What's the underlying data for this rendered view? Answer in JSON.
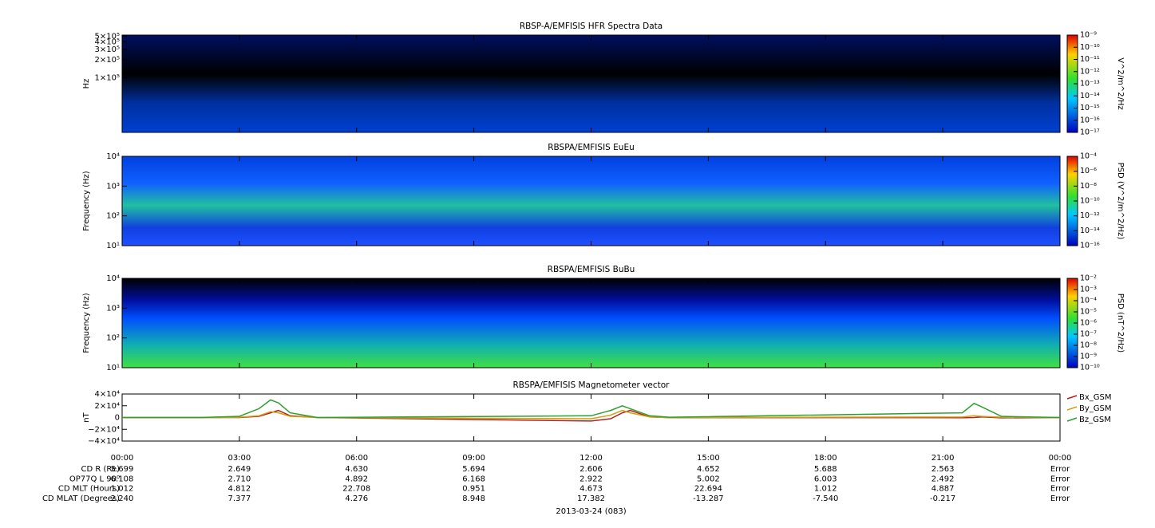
{
  "chart_data": [
    {
      "type": "spectrogram",
      "title": "RBSP-A/EMFISIS  HFR Spectra Data",
      "ylabel": "Hz",
      "ylog": true,
      "ylim": [
        12000,
        520000
      ],
      "yticks": [
        {
          "value": 100000,
          "label": "1×10⁵"
        },
        {
          "value": 200000,
          "label": "2×10⁵"
        },
        {
          "value": 300000,
          "label": "3×10⁵"
        },
        {
          "value": 400000,
          "label": "4×10⁵"
        },
        {
          "value": 500000,
          "label": "5×10⁵"
        }
      ],
      "xlim": [
        0,
        24
      ],
      "xticks": [
        0,
        3,
        6,
        9,
        12,
        15,
        18,
        21,
        24
      ],
      "colorbar": {
        "label": "V^2/m^2/Hz",
        "lim": [
          1e-17,
          1e-09
        ],
        "ticks": [
          {
            "value": 1e-09,
            "label": "10⁻⁹"
          },
          {
            "value": 1e-10,
            "label": "10⁻¹⁰"
          },
          {
            "value": 1e-11,
            "label": "10⁻¹¹"
          },
          {
            "value": 1e-12,
            "label": "10⁻¹²"
          },
          {
            "value": 1e-13,
            "label": "10⁻¹³"
          },
          {
            "value": 1e-14,
            "label": "10⁻¹⁴"
          },
          {
            "value": 1e-15,
            "label": "10⁻¹⁵"
          },
          {
            "value": 1e-16,
            "label": "10⁻¹⁶"
          },
          {
            "value": 1e-17,
            "label": "10⁻¹⁷"
          }
        ]
      }
    },
    {
      "type": "spectrogram",
      "title": "RBSPA/EMFISIS  EuEu",
      "ylabel": "Frequency (Hz)",
      "ylog": true,
      "ylim": [
        10,
        10000
      ],
      "yticks": [
        {
          "value": 10,
          "label": "10¹"
        },
        {
          "value": 100,
          "label": "10²"
        },
        {
          "value": 1000,
          "label": "10³"
        },
        {
          "value": 10000,
          "label": "10⁴"
        }
      ],
      "xlim": [
        0,
        24
      ],
      "xticks": [
        0,
        3,
        6,
        9,
        12,
        15,
        18,
        21,
        24
      ],
      "colorbar": {
        "label": "PSD (V^2/m^2/Hz)",
        "lim": [
          1e-16,
          0.0001
        ],
        "ticks": [
          {
            "value": 0.0001,
            "label": "10⁻⁴"
          },
          {
            "value": 1e-06,
            "label": "10⁻⁶"
          },
          {
            "value": 1e-08,
            "label": "10⁻⁸"
          },
          {
            "value": 1e-10,
            "label": "10⁻¹⁰"
          },
          {
            "value": 1e-12,
            "label": "10⁻¹²"
          },
          {
            "value": 1e-14,
            "label": "10⁻¹⁴"
          },
          {
            "value": 1e-16,
            "label": "10⁻¹⁶"
          }
        ]
      }
    },
    {
      "type": "spectrogram",
      "title": "RBSPA/EMFISIS  BuBu",
      "ylabel": "Frequency (Hz)",
      "ylog": true,
      "ylim": [
        10,
        10000
      ],
      "yticks": [
        {
          "value": 10,
          "label": "10¹"
        },
        {
          "value": 100,
          "label": "10²"
        },
        {
          "value": 1000,
          "label": "10³"
        },
        {
          "value": 10000,
          "label": "10⁴"
        }
      ],
      "xlim": [
        0,
        24
      ],
      "xticks": [
        0,
        3,
        6,
        9,
        12,
        15,
        18,
        21,
        24
      ],
      "colorbar": {
        "label": "PSD (nT^2/Hz)",
        "lim": [
          1e-10,
          0.01
        ],
        "ticks": [
          {
            "value": 0.01,
            "label": "10⁻²"
          },
          {
            "value": 0.001,
            "label": "10⁻³"
          },
          {
            "value": 0.0001,
            "label": "10⁻⁴"
          },
          {
            "value": 1e-05,
            "label": "10⁻⁵"
          },
          {
            "value": 1e-06,
            "label": "10⁻⁶"
          },
          {
            "value": 1e-07,
            "label": "10⁻⁷"
          },
          {
            "value": 1e-08,
            "label": "10⁻⁸"
          },
          {
            "value": 1e-09,
            "label": "10⁻⁹"
          },
          {
            "value": 1e-10,
            "label": "10⁻¹⁰"
          }
        ]
      }
    },
    {
      "type": "line",
      "title": "RBSPA/EMFISIS  Magnetometer vector",
      "ylabel": "nT",
      "ylim": [
        -40000,
        40000
      ],
      "yticks": [
        {
          "value": -40000,
          "label": "−4×10⁴"
        },
        {
          "value": -20000,
          "label": "−2×10⁴"
        },
        0,
        {
          "value": 20000,
          "label": "2×10⁴"
        },
        {
          "value": 40000,
          "label": "4×10⁴"
        }
      ],
      "xlim": [
        0,
        24
      ],
      "xticks": [
        {
          "value": 0,
          "label": "00:00"
        },
        {
          "value": 3,
          "label": "03:00"
        },
        {
          "value": 6,
          "label": "06:00"
        },
        {
          "value": 9,
          "label": "09:00"
        },
        {
          "value": 12,
          "label": "12:00"
        },
        {
          "value": 15,
          "label": "15:00"
        },
        {
          "value": 18,
          "label": "18:00"
        },
        {
          "value": 21,
          "label": "21:00"
        },
        {
          "value": 24,
          "label": "00:00"
        }
      ],
      "x": [
        0,
        2,
        3,
        3.5,
        3.8,
        4,
        4.3,
        5,
        12,
        12.5,
        12.8,
        13,
        13.5,
        14,
        21.5,
        21.8,
        22,
        22.5,
        24
      ],
      "series": [
        {
          "name": "Bx_GSM",
          "color": "#b22222",
          "values": [
            0,
            0,
            0,
            2000,
            8000,
            12000,
            3000,
            0,
            -6000,
            -2000,
            8000,
            12000,
            1000,
            -200,
            -300,
            0,
            1000,
            -500,
            0
          ]
        },
        {
          "name": "By_GSM",
          "color": "#d4a017",
          "values": [
            0,
            0,
            500,
            3000,
            10000,
            8000,
            2000,
            0,
            -2000,
            4000,
            12000,
            8000,
            1000,
            0,
            1000,
            3000,
            2000,
            500,
            0
          ]
        },
        {
          "name": "Bz_GSM",
          "color": "#2ca02c",
          "values": [
            0,
            0,
            2000,
            15000,
            30000,
            25000,
            8000,
            0,
            3000,
            12000,
            20000,
            15000,
            3000,
            500,
            8000,
            24000,
            18000,
            2000,
            0
          ]
        }
      ]
    }
  ],
  "ephemeris": [
    {
      "label": "CD R (Re)",
      "values": [
        "5.699",
        "2.649",
        "4.630",
        "5.694",
        "2.606",
        "4.652",
        "5.688",
        "2.563",
        "Error"
      ]
    },
    {
      "label": "OP77Q L 90⁰",
      "values": [
        "6.108",
        "2.710",
        "4.892",
        "6.168",
        "2.922",
        "5.002",
        "6.003",
        "2.492",
        "Error"
      ]
    },
    {
      "label": "CD MLT (Hours)",
      "values": [
        "1.012",
        "4.812",
        "22.708",
        "0.951",
        "4.673",
        "22.694",
        "1.012",
        "4.887",
        "Error"
      ]
    },
    {
      "label": "CD MLAT (Degrees)",
      "values": [
        "2.240",
        "7.377",
        "4.276",
        "8.948",
        "17.382",
        "-13.287",
        "-7.540",
        "-0.217",
        "Error"
      ]
    }
  ],
  "date_label": "2013-03-24 (083)"
}
